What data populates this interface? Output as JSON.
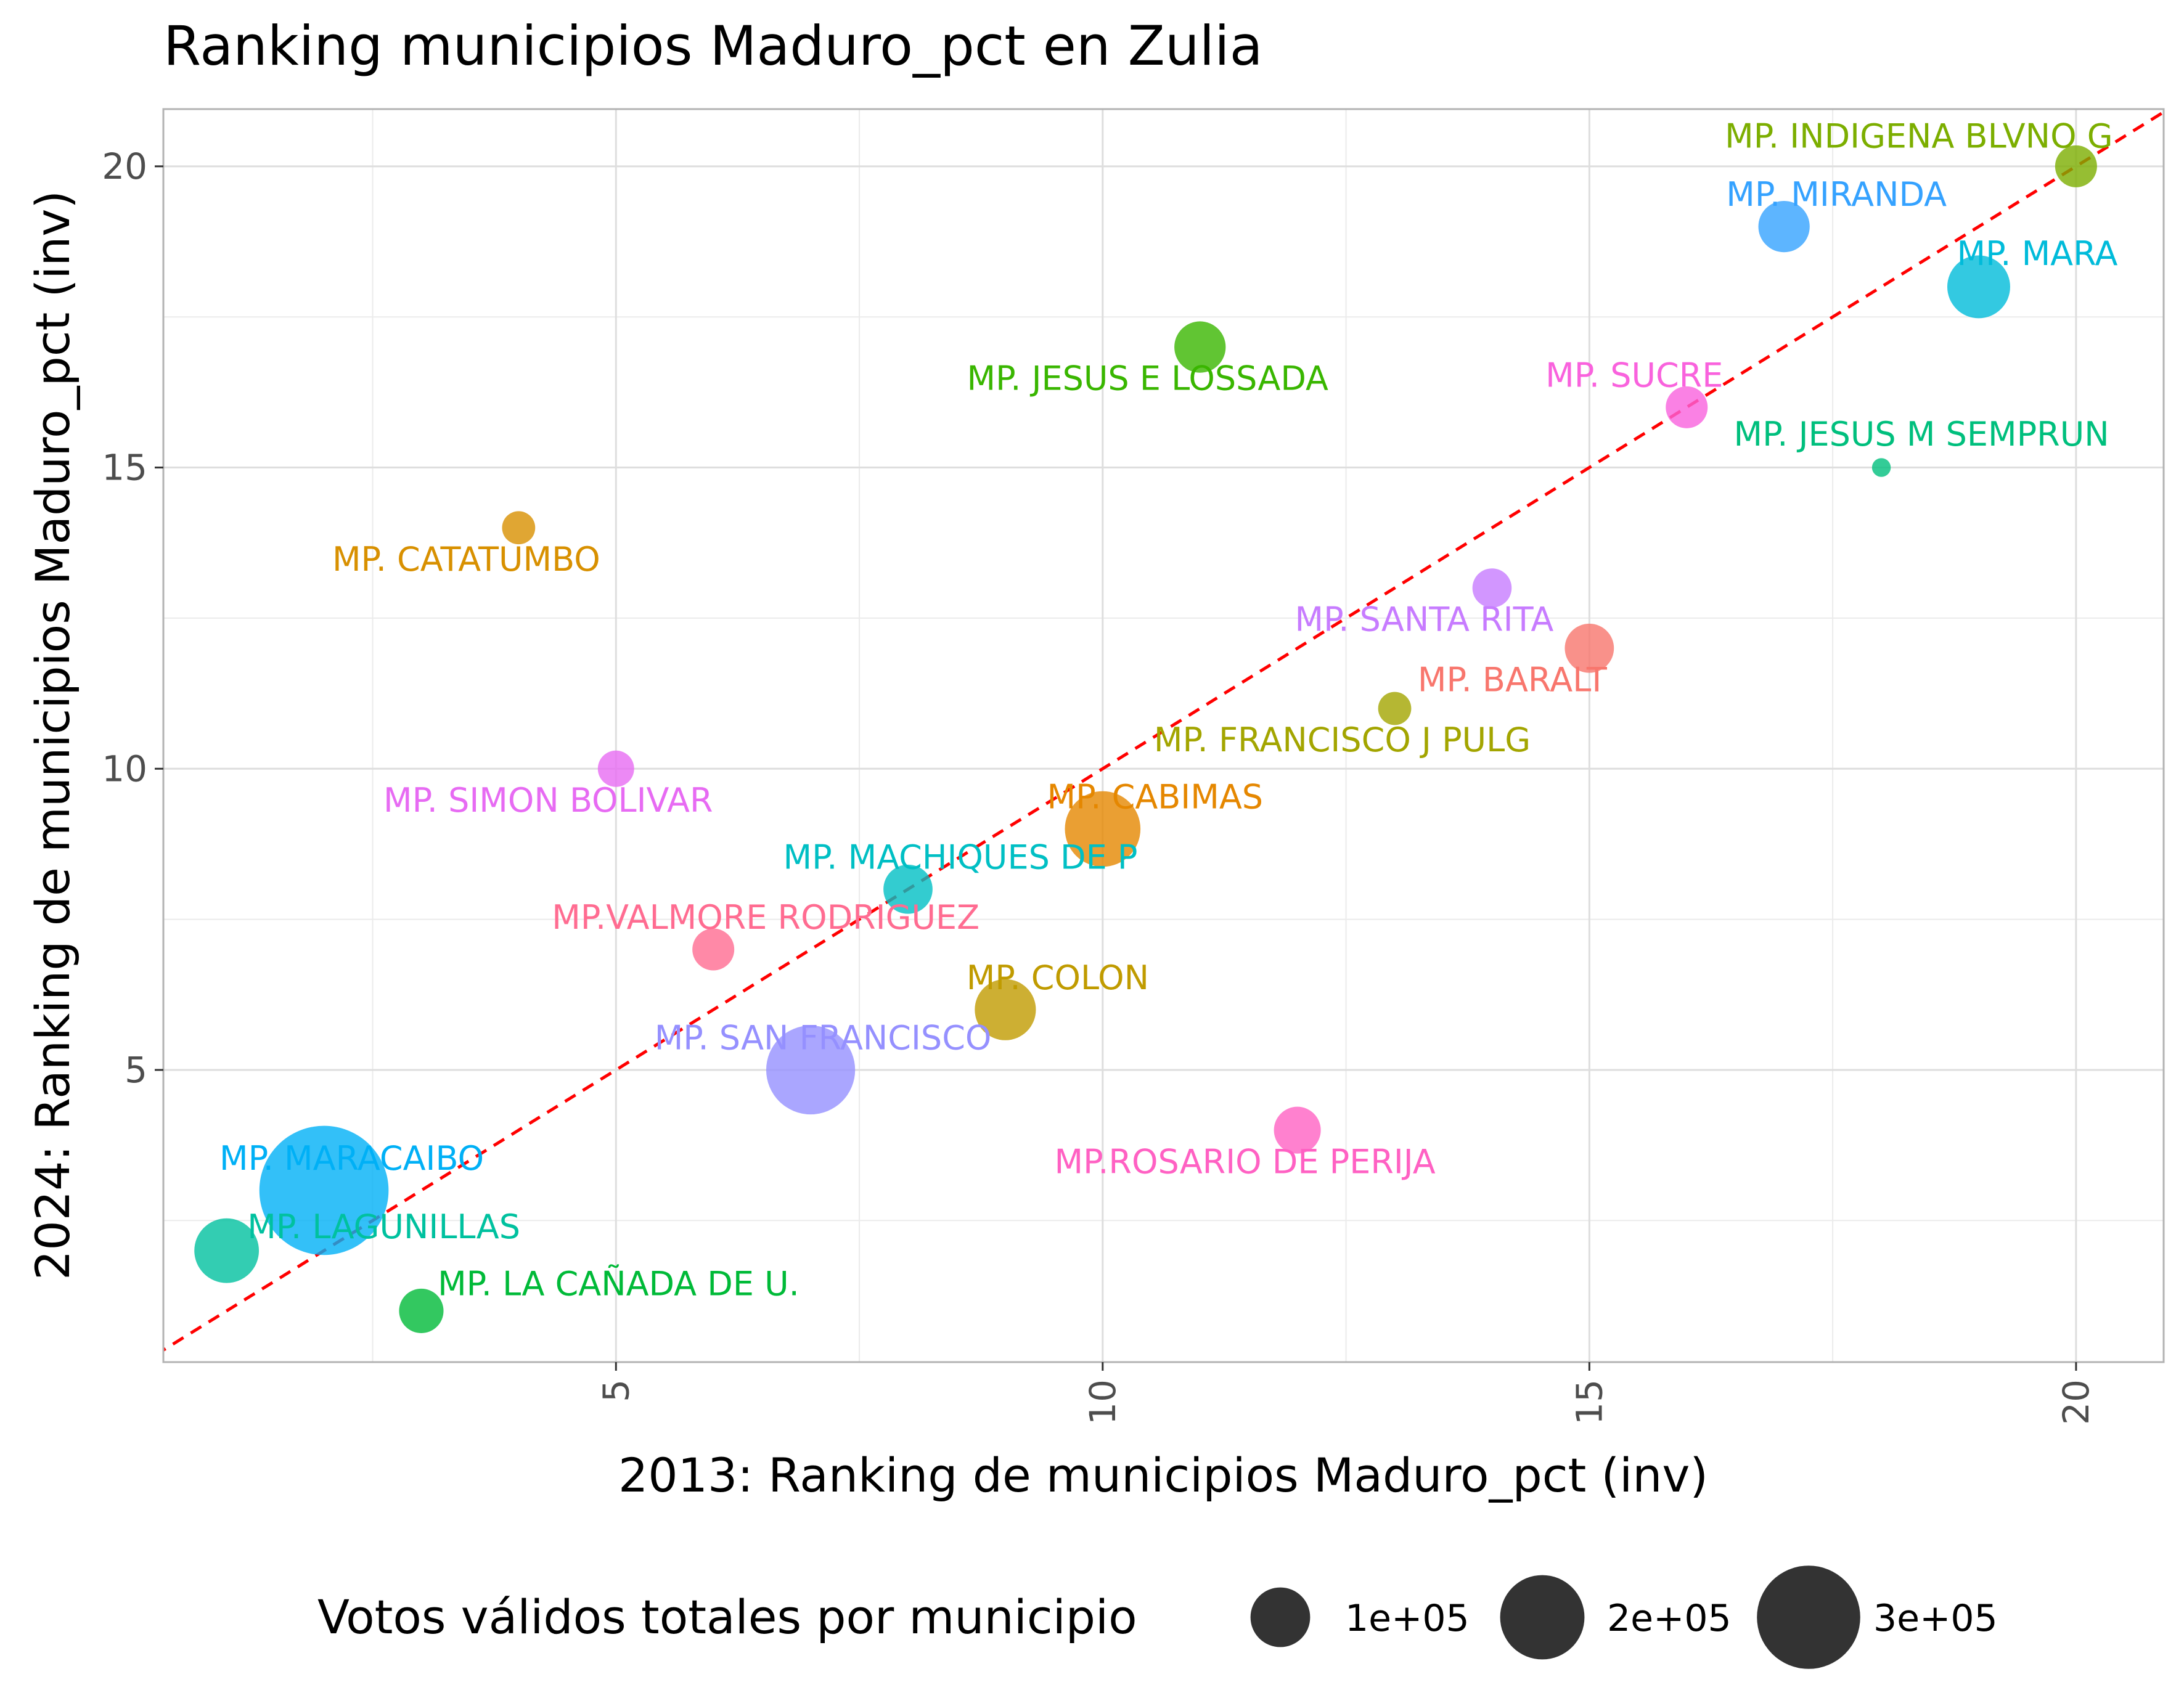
{
  "chart_data": {
    "type": "scatter",
    "title": "Ranking municipios Maduro_pct en Zulia",
    "xlabel": "2013: Ranking de municipios Maduro_pct (inv)",
    "ylabel": "2024: Ranking de municipios Maduro_pct (inv)",
    "xlim": [
      0.35,
      20.9
    ],
    "ylim": [
      0.15,
      20.95
    ],
    "xticks": [
      5,
      10,
      15,
      20
    ],
    "yticks": [
      5,
      10,
      15,
      20
    ],
    "grid": true,
    "reference_line": {
      "type": "identity",
      "color": "#ff0000",
      "style": "dashed"
    },
    "legend": {
      "title": "Votos válidos totales por municipio",
      "position": "bottom",
      "entries": [
        {
          "label": "1e+05",
          "value": 100000
        },
        {
          "label": "2e+05",
          "value": 200000
        },
        {
          "label": "3e+05",
          "value": 300000
        }
      ]
    },
    "points": [
      {
        "label": "MP. INDIGENA BLVNO G",
        "x": 20,
        "y": 20,
        "votes": 40000,
        "color": "#7CAE00"
      },
      {
        "label": "MP. MIRANDA",
        "x": 17,
        "y": 19,
        "votes": 60000,
        "color": "#35A2FF"
      },
      {
        "label": "MP. MARA",
        "x": 19,
        "y": 18,
        "votes": 90000,
        "color": "#00BBDA"
      },
      {
        "label": "MP. JESUS E LOSSADA",
        "x": 11,
        "y": 17,
        "votes": 60000,
        "color": "#39B600"
      },
      {
        "label": "MP. SUCRE",
        "x": 16,
        "y": 16,
        "votes": 40000,
        "color": "#F962DD"
      },
      {
        "label": "MP. JESUS M SEMPRUN",
        "x": 18,
        "y": 15,
        "votes": 8000,
        "color": "#00BF7D"
      },
      {
        "label": "MP. CATATUMBO",
        "x": 4,
        "y": 14,
        "votes": 25000,
        "color": "#D89000"
      },
      {
        "label": "MP. SANTA RITA",
        "x": 14,
        "y": 13,
        "votes": 35000,
        "color": "#C77CFF"
      },
      {
        "label": "MP. BARALT",
        "x": 15,
        "y": 12,
        "votes": 55000,
        "color": "#F8766D"
      },
      {
        "label": "MP. FRANCISCO J PULG",
        "x": 13,
        "y": 11,
        "votes": 25000,
        "color": "#A3A500"
      },
      {
        "label": "MP. SIMON BOLIVAR",
        "x": 5,
        "y": 10,
        "votes": 30000,
        "color": "#E76BF3"
      },
      {
        "label": "MP. CABIMAS",
        "x": 10,
        "y": 9,
        "votes": 130000,
        "color": "#E58700"
      },
      {
        "label": "MP. MACHIQUES DE P",
        "x": 8,
        "y": 8,
        "votes": 55000,
        "color": "#00BFC4"
      },
      {
        "label": "MP.VALMORE RODRIGUEZ",
        "x": 6,
        "y": 7,
        "votes": 40000,
        "color": "#FF6C91"
      },
      {
        "label": "MP. COLON",
        "x": 9,
        "y": 6,
        "votes": 85000,
        "color": "#C09B00"
      },
      {
        "label": "MP. SAN FRANCISCO",
        "x": 7,
        "y": 5,
        "votes": 180000,
        "color": "#9590FF"
      },
      {
        "label": "MP.ROSARIO DE PERIJA",
        "x": 12,
        "y": 4,
        "votes": 50000,
        "color": "#FF61C3"
      },
      {
        "label": "MP. MARACAIBO",
        "x": 2,
        "y": 3,
        "votes": 380000,
        "color": "#00B0F6"
      },
      {
        "label": "MP. LAGUNILLAS",
        "x": 1,
        "y": 2,
        "votes": 95000,
        "color": "#00C19F"
      },
      {
        "label": "MP. LA CAÑADA DE U.",
        "x": 3,
        "y": 1,
        "votes": 45000,
        "color": "#00BA38"
      }
    ]
  }
}
